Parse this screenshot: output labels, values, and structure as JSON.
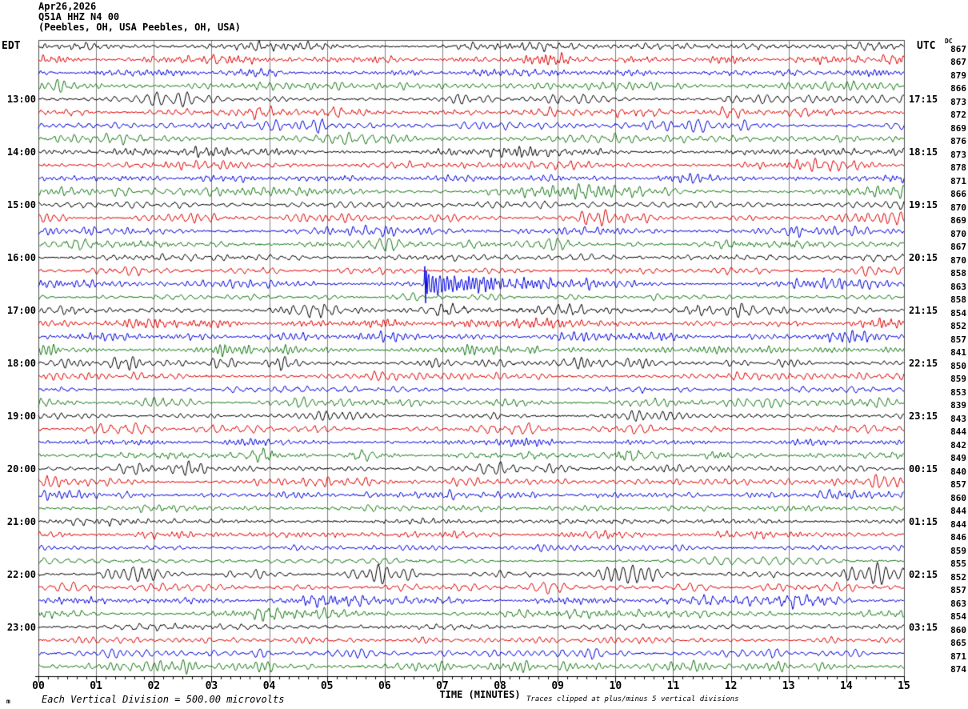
{
  "header": {
    "date": "Apr26,2026",
    "station": "Q51A HHZ N4 00",
    "location": "(Peebles, OH, USA Peebles, OH, USA)",
    "left_timezone": "EDT",
    "right_timezone": "UTC",
    "dc_column_label": "DC"
  },
  "footer": {
    "corner_glyph": "m",
    "scale_note": "Each Vertical Division =  500.00 microvolts",
    "axis_label": "TIME (MINUTES)",
    "clip_note": "Traces clipped at plus/minus 5 vertical divisions"
  },
  "colors": {
    "trace_cycle": [
      "#000000",
      "#e00000",
      "#0000dd",
      "#147814"
    ],
    "grid": "#808080",
    "border": "#505050",
    "axis": "#000000",
    "background": "#ffffff"
  },
  "chart_data": {
    "type": "line",
    "title": "Helicorder seismogram, station Q51A HHZ N4 00, Peebles OH USA, Apr26,2026",
    "x_axis": {
      "label": "TIME (MINUTES)",
      "range_minutes": [
        0,
        15
      ],
      "tick_labels": [
        "00",
        "01",
        "02",
        "03",
        "04",
        "05",
        "06",
        "07",
        "08",
        "09",
        "10",
        "11",
        "12",
        "13",
        "14",
        "15"
      ],
      "minor_ticks_per_minute": 6,
      "grid": true
    },
    "y_layout": {
      "rows": 48,
      "minutes_per_row": 15,
      "row_colors_cycle": [
        "black",
        "red",
        "blue",
        "green"
      ],
      "vertical_division_microvolts": 500.0,
      "clip_divisions": 5
    },
    "left_axis_times_edt": [
      "13:00",
      "14:00",
      "15:00",
      "16:00",
      "17:00",
      "18:00",
      "19:00",
      "20:00",
      "21:00",
      "22:00",
      "23:00"
    ],
    "right_axis_times_utc": [
      "17:15",
      "18:15",
      "19:15",
      "20:15",
      "21:15",
      "22:15",
      "23:15",
      "00:15",
      "01:15",
      "02:15",
      "03:15"
    ],
    "rows": [
      {
        "edt": "",
        "utc": "",
        "color": "black",
        "dc": 867
      },
      {
        "edt": "",
        "utc": "",
        "color": "red",
        "dc": 867
      },
      {
        "edt": "",
        "utc": "",
        "color": "blue",
        "dc": 879
      },
      {
        "edt": "",
        "utc": "",
        "color": "green",
        "dc": 866
      },
      {
        "edt": "13:00",
        "utc": "17:15",
        "color": "black",
        "dc": 873
      },
      {
        "edt": "",
        "utc": "",
        "color": "red",
        "dc": 872
      },
      {
        "edt": "",
        "utc": "",
        "color": "blue",
        "dc": 869
      },
      {
        "edt": "",
        "utc": "",
        "color": "green",
        "dc": 876
      },
      {
        "edt": "14:00",
        "utc": "18:15",
        "color": "black",
        "dc": 873
      },
      {
        "edt": "",
        "utc": "",
        "color": "red",
        "dc": 878
      },
      {
        "edt": "",
        "utc": "",
        "color": "blue",
        "dc": 871
      },
      {
        "edt": "",
        "utc": "",
        "color": "green",
        "dc": 866
      },
      {
        "edt": "15:00",
        "utc": "19:15",
        "color": "black",
        "dc": 870
      },
      {
        "edt": "",
        "utc": "",
        "color": "red",
        "dc": 869
      },
      {
        "edt": "",
        "utc": "",
        "color": "blue",
        "dc": 870
      },
      {
        "edt": "",
        "utc": "",
        "color": "green",
        "dc": 867
      },
      {
        "edt": "16:00",
        "utc": "20:15",
        "color": "black",
        "dc": 870
      },
      {
        "edt": "",
        "utc": "",
        "color": "red",
        "dc": 858
      },
      {
        "edt": "",
        "utc": "",
        "color": "blue",
        "dc": 863
      },
      {
        "edt": "",
        "utc": "",
        "color": "green",
        "dc": 858
      },
      {
        "edt": "17:00",
        "utc": "21:15",
        "color": "black",
        "dc": 854
      },
      {
        "edt": "",
        "utc": "",
        "color": "red",
        "dc": 852
      },
      {
        "edt": "",
        "utc": "",
        "color": "blue",
        "dc": 857
      },
      {
        "edt": "",
        "utc": "",
        "color": "green",
        "dc": 841
      },
      {
        "edt": "18:00",
        "utc": "22:15",
        "color": "black",
        "dc": 850
      },
      {
        "edt": "",
        "utc": "",
        "color": "red",
        "dc": 859
      },
      {
        "edt": "",
        "utc": "",
        "color": "blue",
        "dc": 853
      },
      {
        "edt": "",
        "utc": "",
        "color": "green",
        "dc": 839
      },
      {
        "edt": "19:00",
        "utc": "23:15",
        "color": "black",
        "dc": 843
      },
      {
        "edt": "",
        "utc": "",
        "color": "red",
        "dc": 844
      },
      {
        "edt": "",
        "utc": "",
        "color": "blue",
        "dc": 842
      },
      {
        "edt": "",
        "utc": "",
        "color": "green",
        "dc": 849
      },
      {
        "edt": "20:00",
        "utc": "00:15",
        "color": "black",
        "dc": 840
      },
      {
        "edt": "",
        "utc": "",
        "color": "red",
        "dc": 857
      },
      {
        "edt": "",
        "utc": "",
        "color": "blue",
        "dc": 860
      },
      {
        "edt": "",
        "utc": "",
        "color": "green",
        "dc": 844
      },
      {
        "edt": "21:00",
        "utc": "01:15",
        "color": "black",
        "dc": 844
      },
      {
        "edt": "",
        "utc": "",
        "color": "red",
        "dc": 846
      },
      {
        "edt": "",
        "utc": "",
        "color": "blue",
        "dc": 859
      },
      {
        "edt": "",
        "utc": "",
        "color": "green",
        "dc": 855
      },
      {
        "edt": "22:00",
        "utc": "02:15",
        "color": "black",
        "dc": 852
      },
      {
        "edt": "",
        "utc": "",
        "color": "red",
        "dc": 857
      },
      {
        "edt": "",
        "utc": "",
        "color": "blue",
        "dc": 863
      },
      {
        "edt": "",
        "utc": "",
        "color": "green",
        "dc": 854
      },
      {
        "edt": "23:00",
        "utc": "03:15",
        "color": "black",
        "dc": 860
      },
      {
        "edt": "",
        "utc": "",
        "color": "red",
        "dc": 865
      },
      {
        "edt": "",
        "utc": "",
        "color": "blue",
        "dc": 871
      },
      {
        "edt": "",
        "utc": "",
        "color": "green",
        "dc": 874
      }
    ],
    "events": [
      {
        "row_index": 18,
        "row_color": "blue",
        "start_minute": 6.7,
        "end_minute": 10.5,
        "peak_clipped": true,
        "description": "Sharp clipped onset spike followed by high-amplitude decaying burst on the 20:30 UTC blue trace"
      },
      {
        "row_index": 20,
        "row_color": "black",
        "start_minute": 6.8,
        "end_minute": 11.0,
        "peak_clipped": false,
        "description": "Mildly elevated amplitude following the event"
      }
    ],
    "background_character": "continuous quasi-periodic microseismic noise, amplitude ~1 vertical division"
  }
}
